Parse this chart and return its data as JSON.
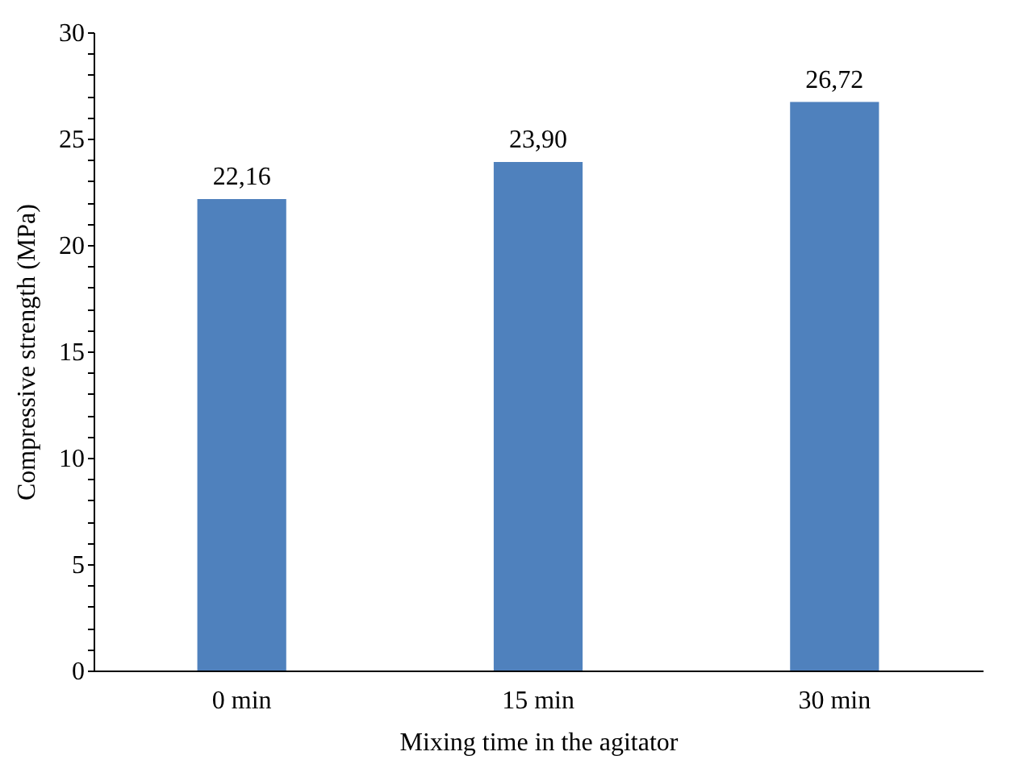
{
  "chart_data": {
    "type": "bar",
    "xlabel": "Mixing time in the agitator",
    "ylabel": "Compressive strength (MPa)",
    "categories": [
      "0 min",
      "15 min",
      "30 min"
    ],
    "values": [
      22.16,
      23.9,
      26.72
    ],
    "value_labels": [
      "22,16",
      "23,90",
      "26,72"
    ],
    "color": "#4f81bd",
    "ylim": [
      0,
      30
    ],
    "yticks": [
      0,
      {
        "value": 1,
        "label": null
      },
      {
        "value": 2,
        "label": null
      },
      {
        "value": 3,
        "label": null
      },
      {
        "value": 4,
        "label": null
      },
      5,
      {
        "value": 6,
        "label": null
      },
      {
        "value": 7,
        "label": null
      },
      {
        "value": 8,
        "label": null
      },
      {
        "value": 9,
        "label": null
      },
      10,
      {
        "value": 11,
        "label": null
      },
      {
        "value": 12,
        "label": null
      },
      {
        "value": 13,
        "label": null
      },
      {
        "value": 14,
        "label": null
      },
      15,
      {
        "value": 16,
        "label": null
      },
      {
        "value": 17,
        "label": null
      },
      {
        "value": 18,
        "label": null
      },
      {
        "value": 19,
        "label": null
      },
      20,
      {
        "value": 21,
        "label": null
      },
      {
        "value": 22,
        "label": null
      },
      {
        "value": 23,
        "label": null
      },
      {
        "value": 24,
        "label": null
      },
      25,
      {
        "value": 26,
        "label": null
      },
      {
        "value": 27,
        "label": null
      },
      {
        "value": 28,
        "label": null
      },
      {
        "value": 29,
        "label": null
      },
      30
    ],
    "grid": false
  }
}
